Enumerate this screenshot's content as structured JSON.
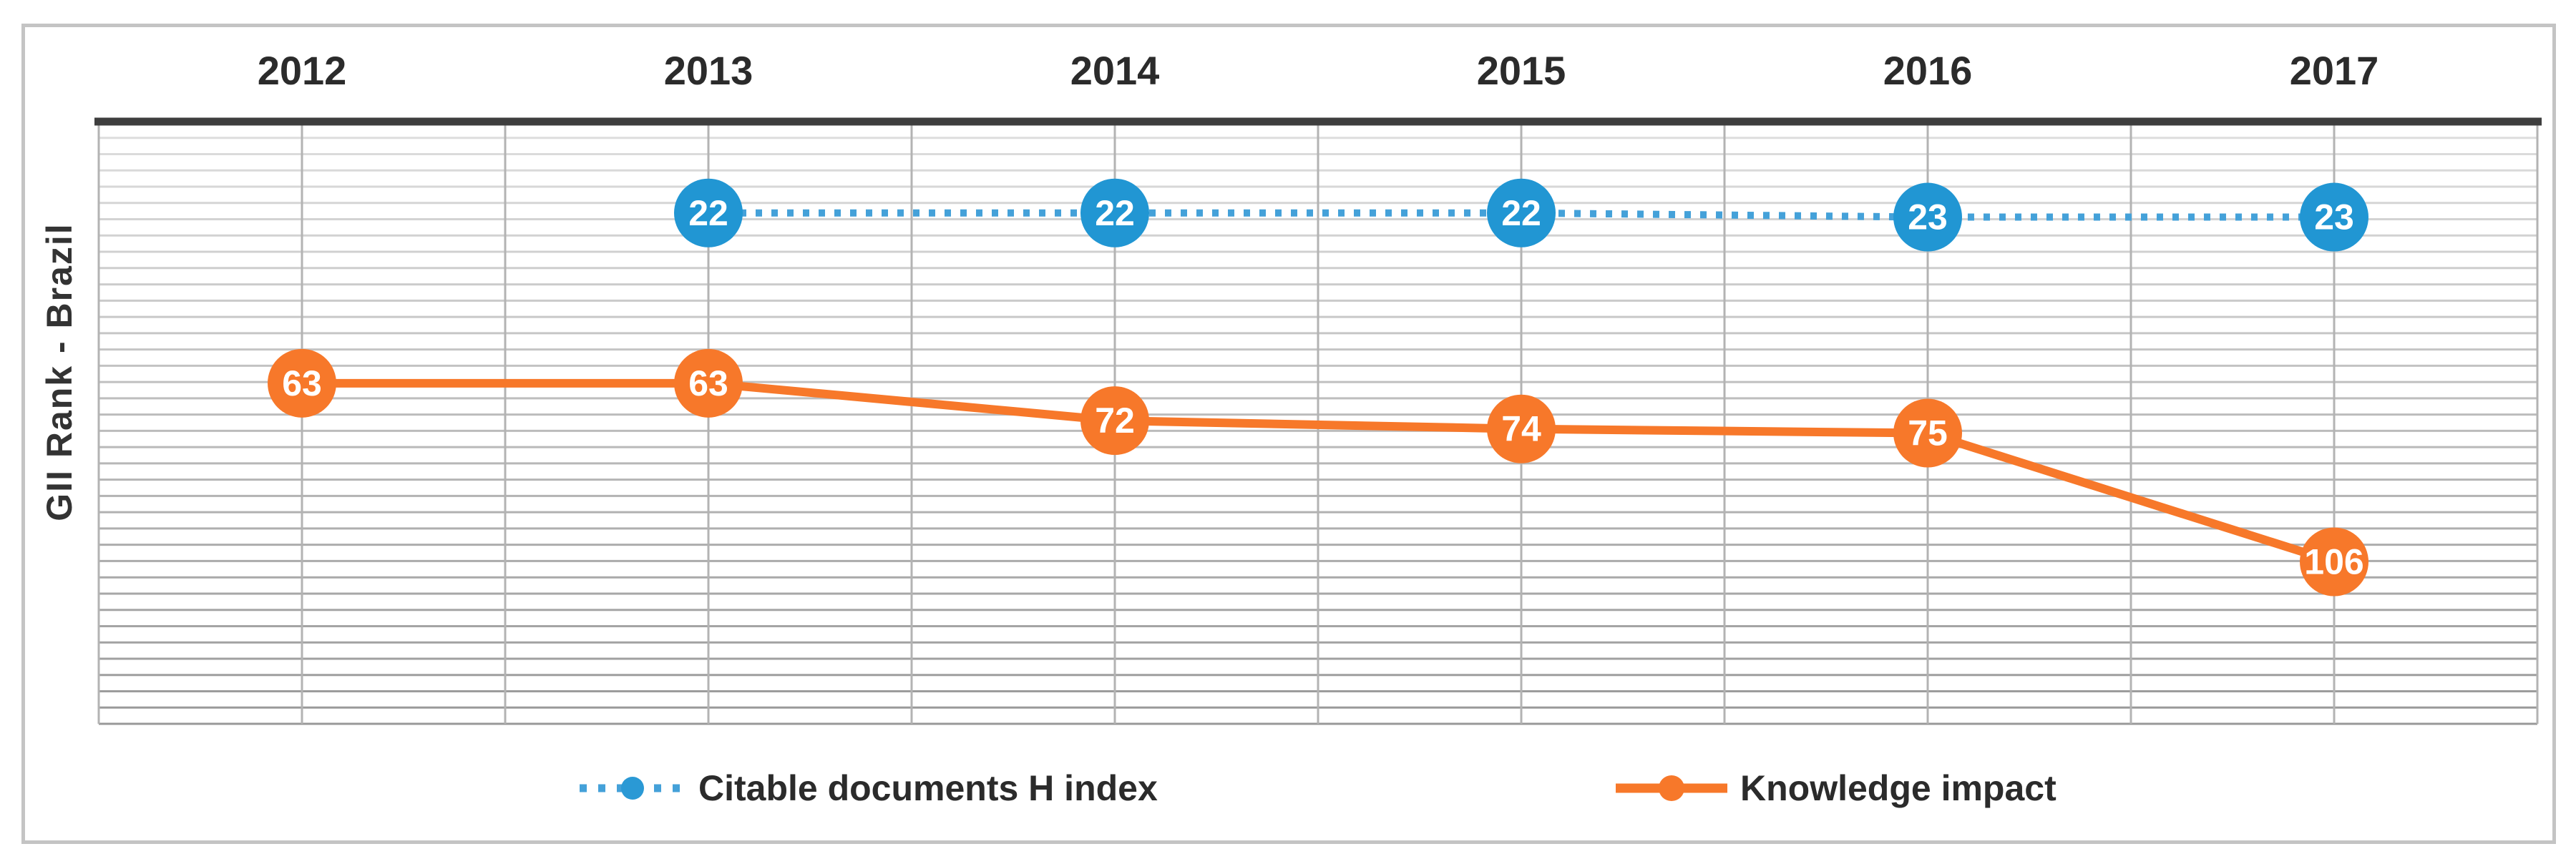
{
  "figure": {
    "background": "#ffffff",
    "border_color": "#c4c4c4"
  },
  "chart_data": {
    "type": "line",
    "title": "",
    "xlabel": "",
    "ylabel": "GII Rank - Brazil",
    "categories": [
      "2012",
      "2013",
      "2014",
      "2015",
      "2016",
      "2017"
    ],
    "series": [
      {
        "name": "Citable documents H index",
        "values": [
          null,
          22,
          22,
          22,
          23,
          23
        ],
        "style": "dotted",
        "marker_color": "#2196d3",
        "line_color": "#44a1d9",
        "data_label_color": "#ffffff"
      },
      {
        "name": "Knowledge impact",
        "values": [
          63,
          63,
          72,
          74,
          75,
          106
        ],
        "style": "solid",
        "marker_color": "#f7782a",
        "line_color": "#f7782a",
        "data_label_color": "#ffffff"
      }
    ],
    "x_axis": {
      "position": "top",
      "labels_visible": true,
      "gridlines": true,
      "axis_line_color": "#3e3e3e"
    },
    "y_axis": {
      "min": 0,
      "max": 145,
      "inverted": true,
      "labels_visible": false,
      "gridlines": true
    },
    "gridline_color_top": "#dfdfdf",
    "gridline_color_bottom": "#989898",
    "vertical_gridline_color": "#b3b3b3",
    "data_labels": "on-marker",
    "legend": {
      "position": "bottom",
      "entries": [
        "Citable documents H index",
        "Knowledge impact"
      ]
    }
  }
}
